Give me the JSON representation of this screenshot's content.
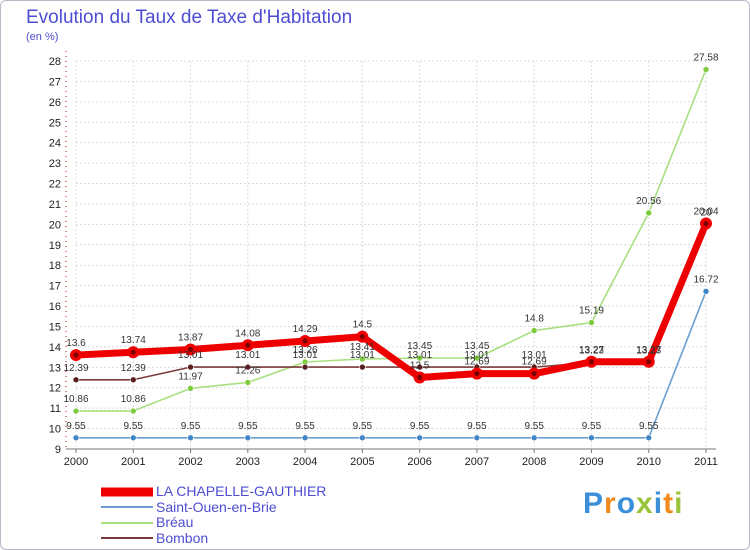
{
  "title": "Evolution du Taux de Taxe d'Habitation",
  "subtitle": "(en %)",
  "logo_text": "Proxiti",
  "logo_colors": [
    "#3b8fd8",
    "#f08a1c",
    "#3b8fd8",
    "#9ac43a",
    "#3b8fd8",
    "#f08a1c",
    "#9ac43a"
  ],
  "chart_data": {
    "type": "line",
    "title": "Evolution du Taux de Taxe d'Habitation",
    "ylabel": "(en %)",
    "xlabel": "",
    "x": [
      "2000",
      "2001",
      "2002",
      "2003",
      "2004",
      "2005",
      "2006",
      "2007",
      "2008",
      "2009",
      "2010",
      "2011"
    ],
    "ylim": [
      9,
      28
    ],
    "yticks": [
      9,
      10,
      11,
      12,
      13,
      14,
      15,
      16,
      17,
      18,
      19,
      20,
      21,
      22,
      23,
      24,
      25,
      26,
      27,
      28
    ],
    "grid": true,
    "legend_position": "bottom-left",
    "series": [
      {
        "name": "Saint-Ouen-en-Brie",
        "color": "#6a9fcf",
        "point_color": "#3f85c8",
        "emphasis": false,
        "values": [
          9.55,
          9.55,
          9.55,
          9.55,
          9.55,
          9.55,
          9.55,
          9.55,
          9.55,
          9.55,
          9.55,
          16.72
        ],
        "labels": [
          "9.55",
          "9.55",
          "9.55",
          "9.55",
          "9.55",
          "9.55",
          "9.55",
          "9.55",
          "9.55",
          "9.55",
          "9.55",
          "16.72"
        ]
      },
      {
        "name": "Bréau",
        "color": "#a8e080",
        "point_color": "#7ccc3e",
        "emphasis": false,
        "values": [
          10.86,
          10.86,
          11.97,
          12.26,
          13.26,
          13.41,
          13.45,
          13.45,
          14.8,
          15.19,
          20.56,
          27.58
        ],
        "labels": [
          "10.86",
          "10.86",
          "11.97",
          "12.26",
          "13.26",
          "13.41",
          "13.45",
          "13.45",
          "14.8",
          "15.19",
          "20.56",
          "27.58"
        ]
      },
      {
        "name": "Bombon",
        "color": "#7a3a3a",
        "point_color": "#5a1e1e",
        "emphasis": false,
        "values": [
          12.39,
          12.39,
          13.01,
          13.01,
          13.01,
          13.01,
          13.01,
          13.01,
          13.01,
          13.23,
          13.23,
          20
        ],
        "labels": [
          "12.39",
          "12.39",
          "13.01",
          "13.01",
          "13.01",
          "13.01",
          "13.01",
          "13.01",
          "13.01",
          "13.23",
          "13.23",
          "20"
        ]
      },
      {
        "name": "LA CHAPELLE-GAUTHIER",
        "color": "#ee0000",
        "point_color": "#dd0000",
        "emphasis": true,
        "values": [
          13.6,
          13.74,
          13.87,
          14.08,
          14.29,
          14.5,
          12.5,
          12.69,
          12.69,
          13.27,
          13.27,
          20.04
        ],
        "labels": [
          "13.6",
          "13.74",
          "13.87",
          "14.08",
          "14.29",
          "14.5",
          "12.5",
          "12.69",
          "12.69",
          "13.27",
          "13.27",
          "20.04"
        ]
      }
    ],
    "legend": [
      {
        "name": "LA CHAPELLE-GAUTHIER",
        "color": "#ee0000",
        "emphasis": true
      },
      {
        "name": "Saint-Ouen-en-Brie",
        "color": "#6a9fcf",
        "emphasis": false
      },
      {
        "name": "Bréau",
        "color": "#a8e080",
        "emphasis": false
      },
      {
        "name": "Bombon",
        "color": "#7a3a3a",
        "emphasis": false
      }
    ]
  }
}
